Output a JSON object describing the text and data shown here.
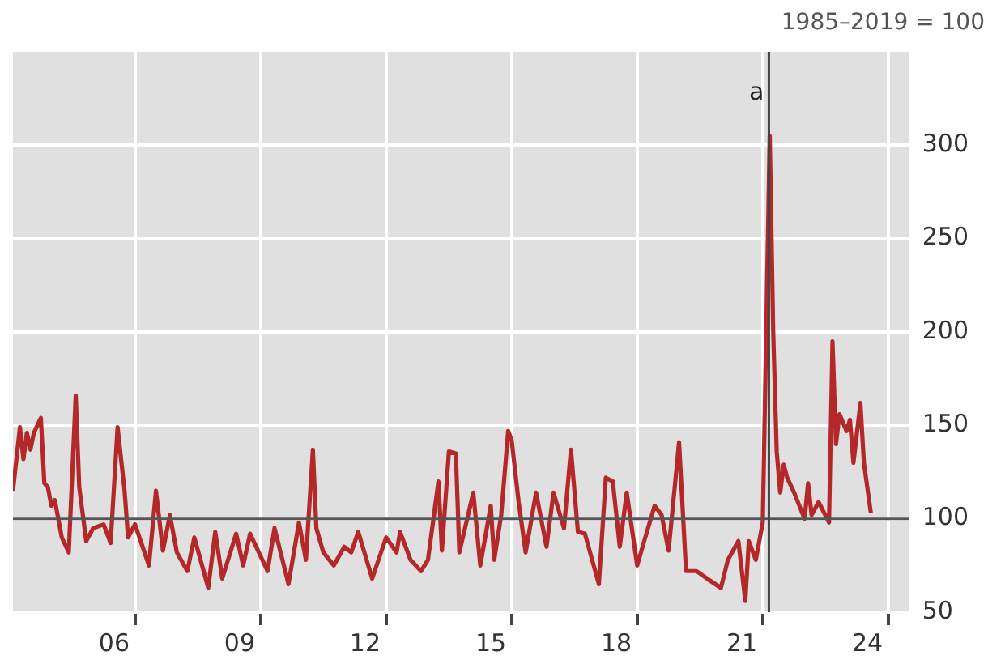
{
  "chart_data": {
    "type": "line",
    "annotations": [
      "1985–2019 = 100"
    ],
    "x": [
      "2004-02",
      "2004-04",
      "2004-05",
      "2004-06",
      "2004-07",
      "2004-08",
      "2004-10",
      "2004-11",
      "2004-12",
      "2005-01",
      "2005-02",
      "2005-04",
      "2005-06",
      "2005-08",
      "2005-09",
      "2005-11",
      "2006-01",
      "2006-04",
      "2006-06",
      "2006-08",
      "2006-10",
      "2006-11",
      "2007-01",
      "2007-05",
      "2007-07",
      "2007-09",
      "2007-11",
      "2008-01",
      "2008-04",
      "2008-06",
      "2008-10",
      "2008-12",
      "2009-02",
      "2009-06",
      "2009-08",
      "2009-10",
      "2010-03",
      "2010-05",
      "2010-09",
      "2010-12",
      "2011-02",
      "2011-04",
      "2011-05",
      "2011-07",
      "2011-10",
      "2012-01",
      "2012-03",
      "2012-05",
      "2012-09",
      "2013-01",
      "2013-04",
      "2013-05",
      "2013-08",
      "2013-11",
      "2014-01",
      "2014-04",
      "2014-05",
      "2014-07",
      "2014-09",
      "2014-10",
      "2015-02",
      "2015-04",
      "2015-07",
      "2015-08",
      "2015-10",
      "2015-12",
      "2016-01",
      "2016-03",
      "2016-05",
      "2016-08",
      "2016-11",
      "2017-01",
      "2017-04",
      "2017-06",
      "2017-08",
      "2017-10",
      "2018-02",
      "2018-04",
      "2018-06",
      "2018-08",
      "2018-10",
      "2019-01",
      "2019-03",
      "2019-06",
      "2019-08",
      "2019-10",
      "2020-01",
      "2020-03",
      "2020-06",
      "2020-09",
      "2021-01",
      "2021-03",
      "2021-06",
      "2021-08",
      "2021-09",
      "2021-11",
      "2022-01",
      "2022-02",
      "2022-03",
      "2022-04",
      "2022-05",
      "2022-06",
      "2022-07",
      "2022-08",
      "2022-10",
      "2023-01",
      "2023-02",
      "2023-03",
      "2023-05",
      "2023-08",
      "2023-09",
      "2023-10",
      "2023-11",
      "2024-01",
      "2024-02",
      "2024-03",
      "2024-05",
      "2024-06",
      "2024-08"
    ],
    "series": [
      {
        "color": "#b5282a",
        "values": [
          115,
          149,
          132,
          146,
          137,
          146,
          154,
          119,
          117,
          107,
          110,
          90,
          82,
          166,
          117,
          88,
          95,
          97,
          87,
          149,
          115,
          90,
          97,
          75,
          115,
          83,
          102,
          82,
          72,
          90,
          63,
          93,
          68,
          92,
          75,
          92,
          72,
          95,
          65,
          98,
          78,
          137,
          95,
          82,
          75,
          85,
          82,
          93,
          68,
          90,
          82,
          93,
          78,
          72,
          78,
          120,
          83,
          136,
          135,
          82,
          114,
          75,
          107,
          78,
          102,
          147,
          142,
          109,
          82,
          114,
          85,
          114,
          95,
          137,
          93,
          92,
          65,
          122,
          120,
          85,
          114,
          75,
          88,
          107,
          102,
          83,
          141,
          72,
          72,
          68,
          63,
          78,
          88,
          56,
          88,
          78,
          98,
          200,
          305,
          200,
          136,
          114,
          129,
          122,
          114,
          100,
          119,
          102,
          109,
          98,
          195,
          140,
          156,
          147,
          153,
          130,
          162,
          130,
          103
        ]
      }
    ],
    "xlim": [
      "2004-02",
      "2025-07"
    ],
    "xticks": [
      {
        "value": "2006-07",
        "label": "06"
      },
      {
        "value": "2007-01",
        "label": null
      },
      {
        "value": "2009-07",
        "label": "09"
      },
      {
        "value": "2010-01",
        "label": null
      },
      {
        "value": "2012-07",
        "label": "12"
      },
      {
        "value": "2013-01",
        "label": null
      },
      {
        "value": "2015-07",
        "label": "15"
      },
      {
        "value": "2016-01",
        "label": null
      },
      {
        "value": "2018-07",
        "label": "18"
      },
      {
        "value": "2019-01",
        "label": null
      },
      {
        "value": "2021-07",
        "label": "21"
      },
      {
        "value": "2022-01",
        "label": null
      },
      {
        "value": "2024-07",
        "label": "24"
      },
      {
        "value": "2025-01",
        "label": null
      }
    ],
    "ylim": [
      50,
      350
    ],
    "yticks": [
      50,
      100,
      150,
      200,
      250,
      300
    ],
    "grid": true,
    "marker": "none",
    "ref_lines": [
      {
        "axis": "y",
        "value": 100,
        "label": null,
        "color": "#555555"
      },
      {
        "axis": "x",
        "value": "2022-02-24",
        "label": "a",
        "color": "#444444"
      }
    ]
  }
}
